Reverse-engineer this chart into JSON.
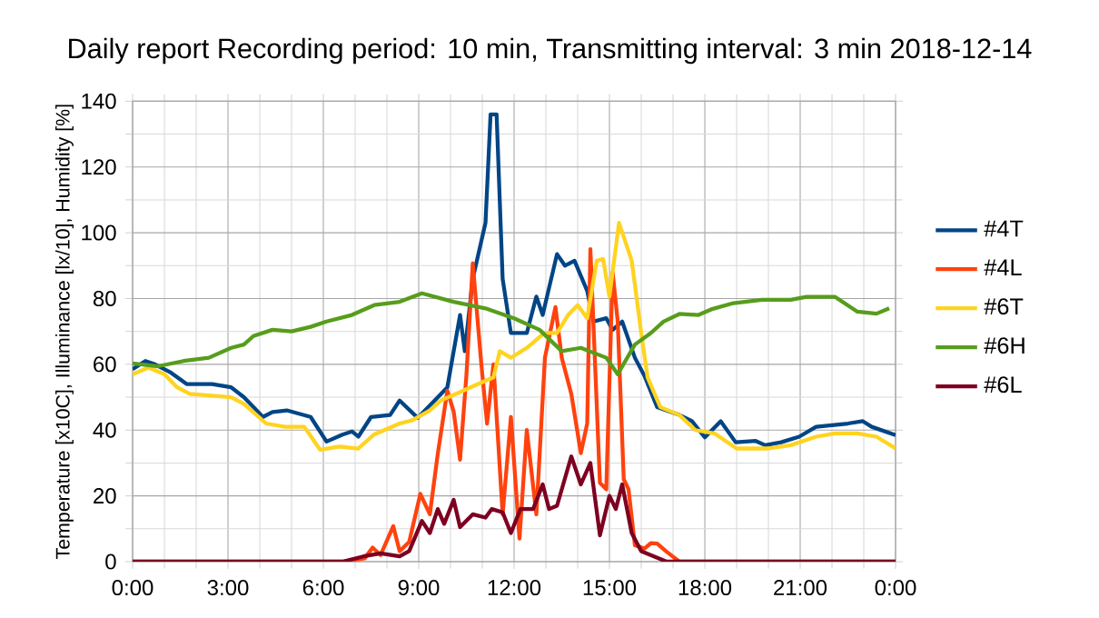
{
  "chart_data": {
    "type": "line",
    "title": "Daily report Recording period: 10 min, Transmitting interval: 3 min 2018-12-14",
    "ylabel": "Temperature [x10C], Illuminance [lx/10], Humidity [%]",
    "xlim": [
      0,
      24
    ],
    "ylim": [
      0,
      140
    ],
    "xticks": [
      {
        "value": 0,
        "label": "0:00"
      },
      {
        "value": 3,
        "label": "3:00"
      },
      {
        "value": 6,
        "label": "6:00"
      },
      {
        "value": 9,
        "label": "9:00"
      },
      {
        "value": 12,
        "label": "12:00"
      },
      {
        "value": 15,
        "label": "15:00"
      },
      {
        "value": 18,
        "label": "18:00"
      },
      {
        "value": 21,
        "label": "21:00"
      },
      {
        "value": 24,
        "label": "0:00"
      }
    ],
    "yticks": [
      0,
      20,
      40,
      60,
      80,
      100,
      120,
      140
    ],
    "grid": true,
    "legend": "right",
    "marker": "none",
    "line_style": "solid",
    "series": [
      {
        "name": "#4T",
        "color": "#004586",
        "x": [
          0,
          0.4,
          0.7,
          1.2,
          1.7,
          2.5,
          3.1,
          3.5,
          4.1,
          4.4,
          4.85,
          5.6,
          6.1,
          6.6,
          6.9,
          7.1,
          7.5,
          8.1,
          8.4,
          8.97,
          9.5,
          9.9,
          10.3,
          10.45,
          10.7,
          11.1,
          11.26,
          11.45,
          11.64,
          11.9,
          12.4,
          12.7,
          12.9,
          13.35,
          13.6,
          13.9,
          14.3,
          14.5,
          14.9,
          15.1,
          15.4,
          15.8,
          16.1,
          16.5,
          17.2,
          17.6,
          18.0,
          18.5,
          18.97,
          19.6,
          19.9,
          20.4,
          20.97,
          21.5,
          22.5,
          22.97,
          23.25,
          24
        ],
        "values": [
          58.5,
          61,
          60,
          57.5,
          54,
          54,
          53,
          50,
          44,
          45.5,
          46,
          44,
          36.5,
          38.6,
          39.6,
          38,
          44,
          44.6,
          49,
          43.7,
          49,
          53,
          75,
          64,
          86,
          103,
          136,
          136,
          86,
          69.5,
          69.5,
          80.6,
          75,
          93.5,
          90,
          91.5,
          82.3,
          73,
          74,
          70.5,
          73,
          62,
          56.5,
          47,
          44.6,
          42.7,
          37.8,
          42.7,
          36.3,
          36.7,
          35.4,
          36.3,
          38,
          41,
          42,
          42.7,
          41,
          38.5
        ]
      },
      {
        "name": "#4L",
        "color": "#ff420e",
        "x": [
          0,
          6.6,
          7.3,
          7.55,
          7.8,
          8.2,
          8.4,
          8.7,
          9.05,
          9.35,
          9.6,
          9.9,
          10.1,
          10.3,
          10.5,
          10.7,
          10.97,
          11.15,
          11.35,
          11.64,
          11.9,
          12.17,
          12.4,
          12.7,
          12.97,
          13.3,
          13.5,
          13.8,
          14.1,
          14.3,
          14.4,
          14.7,
          14.9,
          15.1,
          15.26,
          15.45,
          15.6,
          15.8,
          16.1,
          16.3,
          16.5,
          16.8,
          17.2,
          24
        ],
        "values": [
          0,
          0,
          1,
          4.3,
          2,
          10.8,
          3.2,
          6,
          20.6,
          14.4,
          32.8,
          52,
          45.6,
          31,
          56.6,
          90.7,
          60,
          42,
          60,
          14.4,
          44,
          7,
          40,
          14.4,
          62,
          77.4,
          62,
          51,
          33,
          42,
          95,
          24,
          22,
          88,
          73,
          25,
          22,
          5,
          4,
          5.6,
          5.5,
          3,
          0,
          0
        ]
      },
      {
        "name": "#6T",
        "color": "#ffd320",
        "x": [
          0,
          0.5,
          1.0,
          1.4,
          1.8,
          3.1,
          3.5,
          4.2,
          4.8,
          5.4,
          5.9,
          6.5,
          7.1,
          7.6,
          8.4,
          8.8,
          9.35,
          9.7,
          11.1,
          11.35,
          11.55,
          11.9,
          12.4,
          12.95,
          13.35,
          13.7,
          14.0,
          14.3,
          14.6,
          14.8,
          15.0,
          15.3,
          15.7,
          16.0,
          16.2,
          16.6,
          17.2,
          17.7,
          18.3,
          19.0,
          20.0,
          20.7,
          21.5,
          22.1,
          22.8,
          23.4,
          24
        ],
        "values": [
          57,
          59,
          57,
          53,
          51,
          50,
          48,
          42,
          41,
          41,
          34,
          35,
          34.4,
          38.7,
          42,
          43,
          46,
          49,
          55,
          56,
          64,
          62,
          65,
          69.5,
          69.5,
          75,
          78,
          74,
          91.5,
          92,
          80.6,
          103,
          91.5,
          69.5,
          56,
          47,
          44.6,
          40,
          39,
          34.4,
          34.4,
          35.4,
          38,
          39,
          39,
          38,
          34.4
        ]
      },
      {
        "name": "#6H",
        "color": "#579d1c",
        "x": [
          0,
          0.8,
          1.6,
          2.4,
          3.1,
          3.5,
          3.8,
          4.4,
          5.0,
          5.6,
          6.1,
          6.9,
          7.6,
          8.4,
          9.1,
          10.1,
          11.1,
          12.0,
          12.8,
          13.5,
          14.1,
          14.9,
          15.26,
          15.8,
          16.3,
          16.7,
          17.2,
          17.8,
          18.2,
          18.9,
          19.8,
          20.7,
          21.2,
          22.1,
          22.8,
          23.4,
          23.8
        ],
        "values": [
          60.3,
          59.4,
          61,
          62,
          65,
          66,
          68.6,
          70.5,
          70,
          71.4,
          73,
          75,
          78,
          79,
          81.6,
          79,
          77,
          74,
          70.5,
          64,
          65,
          62,
          57,
          66,
          69.5,
          73,
          75.3,
          75,
          76.7,
          78.6,
          79.6,
          79.6,
          80.5,
          80.5,
          76,
          75.4,
          77
        ]
      },
      {
        "name": "#6L",
        "color": "#7e0021",
        "x": [
          0,
          6.6,
          7.26,
          7.8,
          8.4,
          8.7,
          9.1,
          9.35,
          9.6,
          9.8,
          10.1,
          10.3,
          10.7,
          11.1,
          11.3,
          11.64,
          11.9,
          12.2,
          12.6,
          12.9,
          13.1,
          13.35,
          13.8,
          14.1,
          14.4,
          14.7,
          15.0,
          15.2,
          15.4,
          15.7,
          16.0,
          16.4,
          16.8,
          24
        ],
        "values": [
          0,
          0,
          1.6,
          2.5,
          1.6,
          3.2,
          12.4,
          8.7,
          16,
          11.5,
          18.8,
          10.5,
          14.4,
          13.4,
          16,
          15,
          8.7,
          16,
          16,
          23.5,
          16,
          17,
          32,
          23.5,
          30,
          8,
          20,
          16,
          23.5,
          8.7,
          3.2,
          1.6,
          0,
          0
        ]
      }
    ]
  }
}
